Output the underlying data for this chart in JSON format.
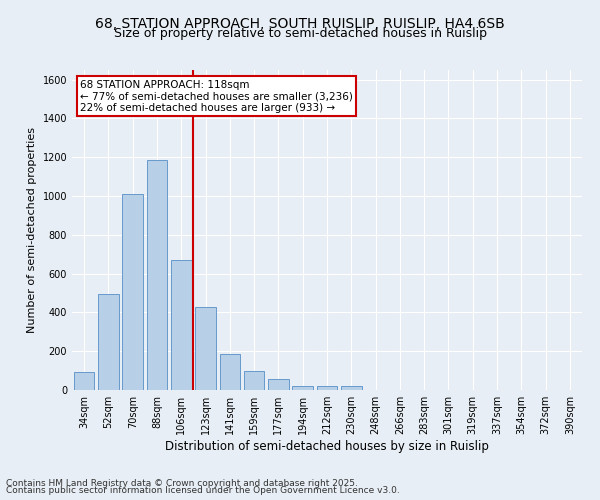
{
  "title1": "68, STATION APPROACH, SOUTH RUISLIP, RUISLIP, HA4 6SB",
  "title2": "Size of property relative to semi-detached houses in Ruislip",
  "xlabel": "Distribution of semi-detached houses by size in Ruislip",
  "ylabel": "Number of semi-detached properties",
  "categories": [
    "34sqm",
    "52sqm",
    "70sqm",
    "88sqm",
    "106sqm",
    "123sqm",
    "141sqm",
    "159sqm",
    "177sqm",
    "194sqm",
    "212sqm",
    "230sqm",
    "248sqm",
    "266sqm",
    "283sqm",
    "301sqm",
    "319sqm",
    "337sqm",
    "354sqm",
    "372sqm",
    "390sqm"
  ],
  "values": [
    95,
    495,
    1010,
    1185,
    670,
    430,
    185,
    100,
    57,
    20,
    20,
    22,
    0,
    0,
    0,
    0,
    0,
    0,
    0,
    0,
    0
  ],
  "bar_color": "#b8cfe8",
  "bar_edge_color": "#6699cc",
  "vline_color": "#cc0000",
  "annotation_title": "68 STATION APPROACH: 118sqm",
  "annotation_line1": "← 77% of semi-detached houses are smaller (3,236)",
  "annotation_line2": "22% of semi-detached houses are larger (933) →",
  "annotation_box_color": "#ffffff",
  "annotation_box_edge": "#cc0000",
  "ylim": [
    0,
    1650
  ],
  "yticks": [
    0,
    200,
    400,
    600,
    800,
    1000,
    1200,
    1400,
    1600
  ],
  "bg_color": "#e8eef5",
  "footer1": "Contains HM Land Registry data © Crown copyright and database right 2025.",
  "footer2": "Contains public sector information licensed under the Open Government Licence v3.0.",
  "title1_fontsize": 10,
  "title2_fontsize": 9,
  "xlabel_fontsize": 8.5,
  "ylabel_fontsize": 8,
  "tick_fontsize": 7,
  "footer_fontsize": 6.5,
  "annotation_fontsize": 7.5
}
